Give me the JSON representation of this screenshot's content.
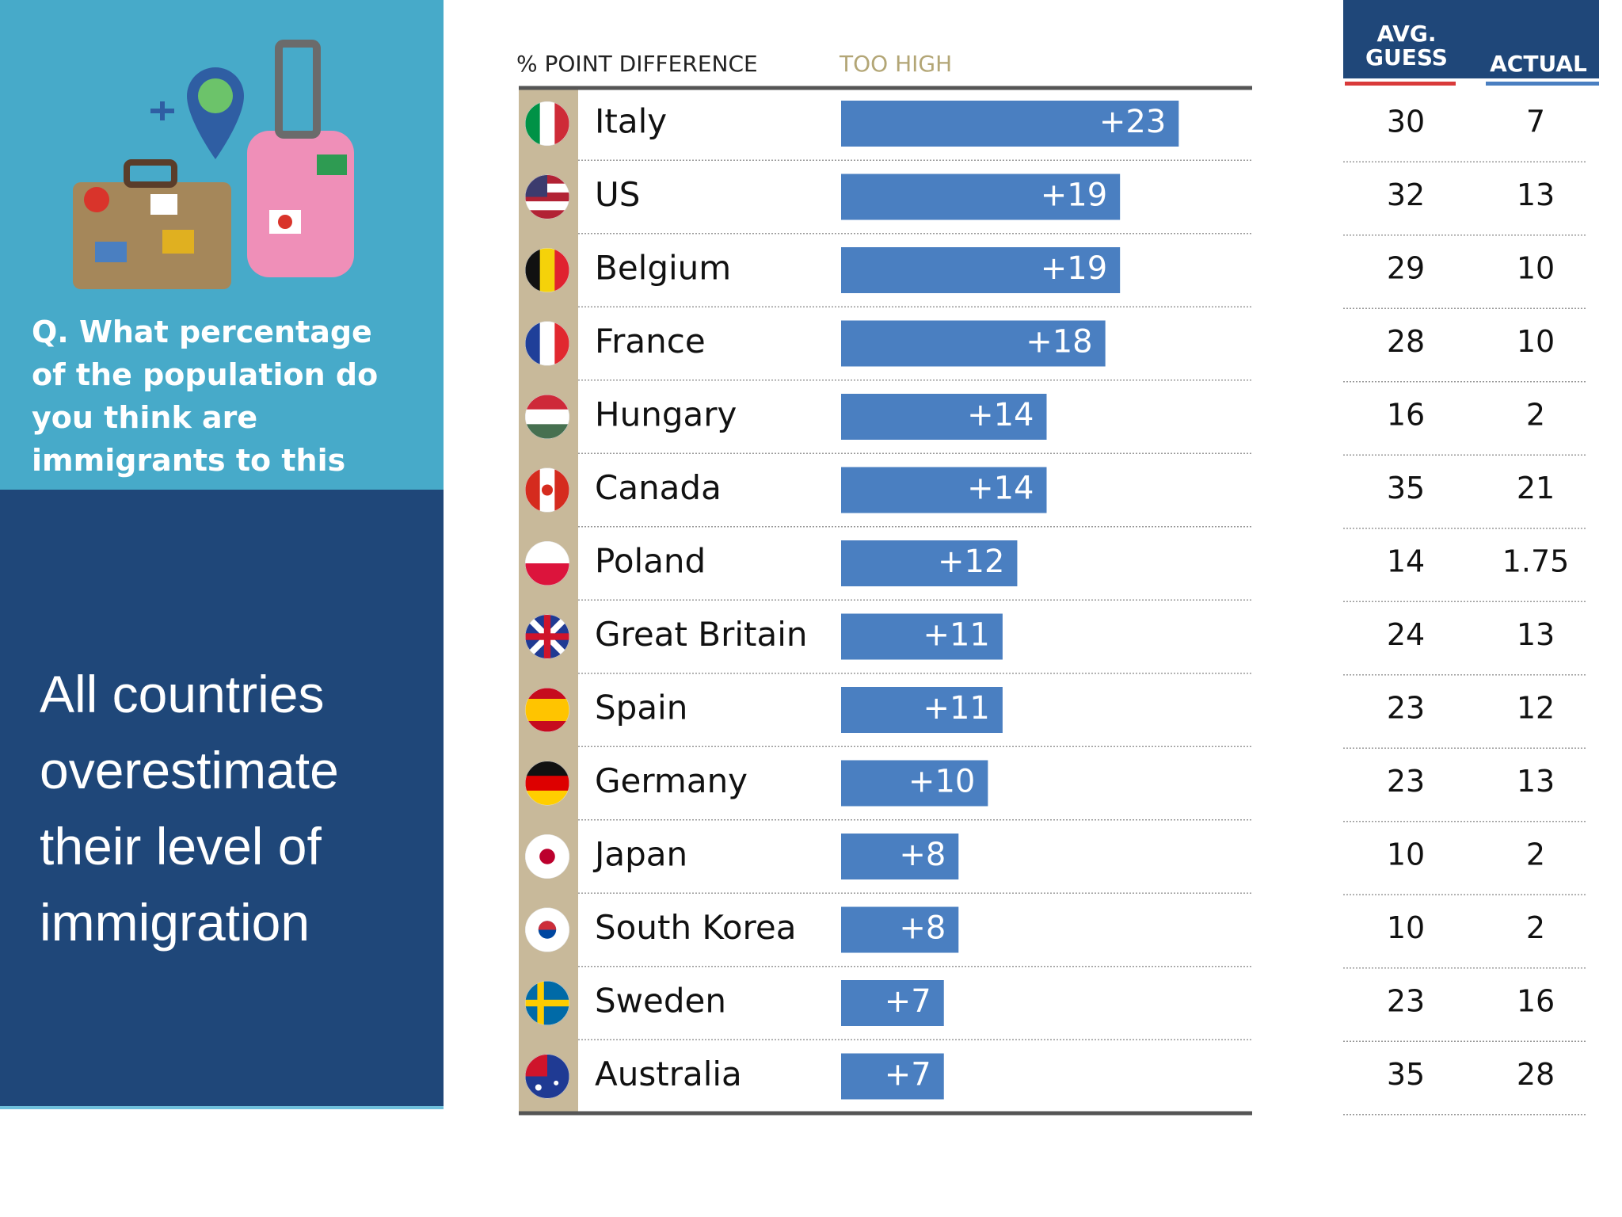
{
  "panel": {
    "question": "Q.   What percentage of the population do you think are immigrants to this country?",
    "headline": "All countries overestimate their level of immigration"
  },
  "chart_data": {
    "type": "bar",
    "orientation": "horizontal",
    "x_label": "% POINT DIFFERENCE",
    "annotation": "TOO HIGH",
    "categories": [
      "Italy",
      "US",
      "Belgium",
      "France",
      "Hungary",
      "Canada",
      "Poland",
      "Great Britain",
      "Spain",
      "Germany",
      "Japan",
      "South Korea",
      "Sweden",
      "Australia"
    ],
    "values": [
      23,
      19,
      19,
      18,
      14,
      14,
      12,
      11,
      11,
      10,
      8,
      8,
      7,
      7
    ],
    "value_labels": [
      "+23",
      "+19",
      "+19",
      "+18",
      "+14",
      "+14",
      "+12",
      "+11",
      "+11",
      "+10",
      "+8",
      "+8",
      "+7",
      "+7"
    ],
    "color": "#4a7fc1",
    "xlim": [
      0,
      28
    ]
  },
  "table": {
    "headers": [
      "AVG. GUESS",
      "ACTUAL"
    ],
    "rows": [
      [
        30,
        7
      ],
      [
        32,
        13
      ],
      [
        29,
        10
      ],
      [
        28,
        10
      ],
      [
        16,
        2
      ],
      [
        35,
        21
      ],
      [
        14,
        1.75
      ],
      [
        24,
        13
      ],
      [
        23,
        12
      ],
      [
        23,
        13
      ],
      [
        10,
        2
      ],
      [
        10,
        2
      ],
      [
        23,
        16
      ],
      [
        35,
        28
      ]
    ]
  }
}
